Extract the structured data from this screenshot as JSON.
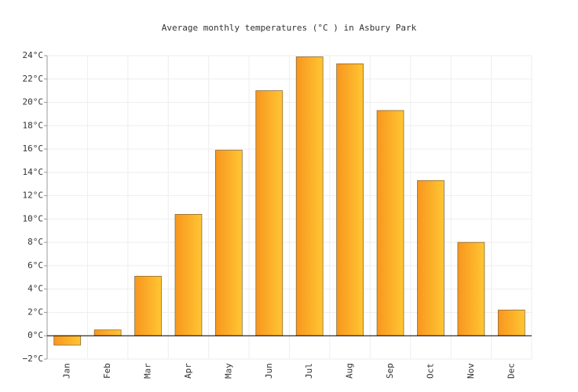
{
  "chart_data": {
    "type": "bar",
    "title": "Average monthly temperatures (°C ) in Asbury Park",
    "categories": [
      "Jan",
      "Feb",
      "Mar",
      "Apr",
      "May",
      "Jun",
      "Jul",
      "Aug",
      "Sep",
      "Oct",
      "Nov",
      "Dec"
    ],
    "values": [
      -0.8,
      0.5,
      5.1,
      10.4,
      15.9,
      21.0,
      23.9,
      23.3,
      19.3,
      13.3,
      8.0,
      2.2
    ],
    "color": [
      "#f8961e",
      "#ffc633"
    ],
    "ylim": [
      -2,
      24
    ],
    "yticks": [
      {
        "value": -2,
        "label": "−2°C"
      },
      {
        "value": 0,
        "label": "0°C"
      },
      {
        "value": 2,
        "label": "2°C"
      },
      {
        "value": 4,
        "label": "4°C"
      },
      {
        "value": 6,
        "label": "6°C"
      },
      {
        "value": 8,
        "label": "8°C"
      },
      {
        "value": 10,
        "label": "10°C"
      },
      {
        "value": 12,
        "label": "12°C"
      },
      {
        "value": 14,
        "label": "14°C"
      },
      {
        "value": 16,
        "label": "16°C"
      },
      {
        "value": 18,
        "label": "18°C"
      },
      {
        "value": 20,
        "label": "20°C"
      },
      {
        "value": 22,
        "label": "22°C"
      },
      {
        "value": 24,
        "label": "24°C"
      }
    ],
    "grid": true
  }
}
